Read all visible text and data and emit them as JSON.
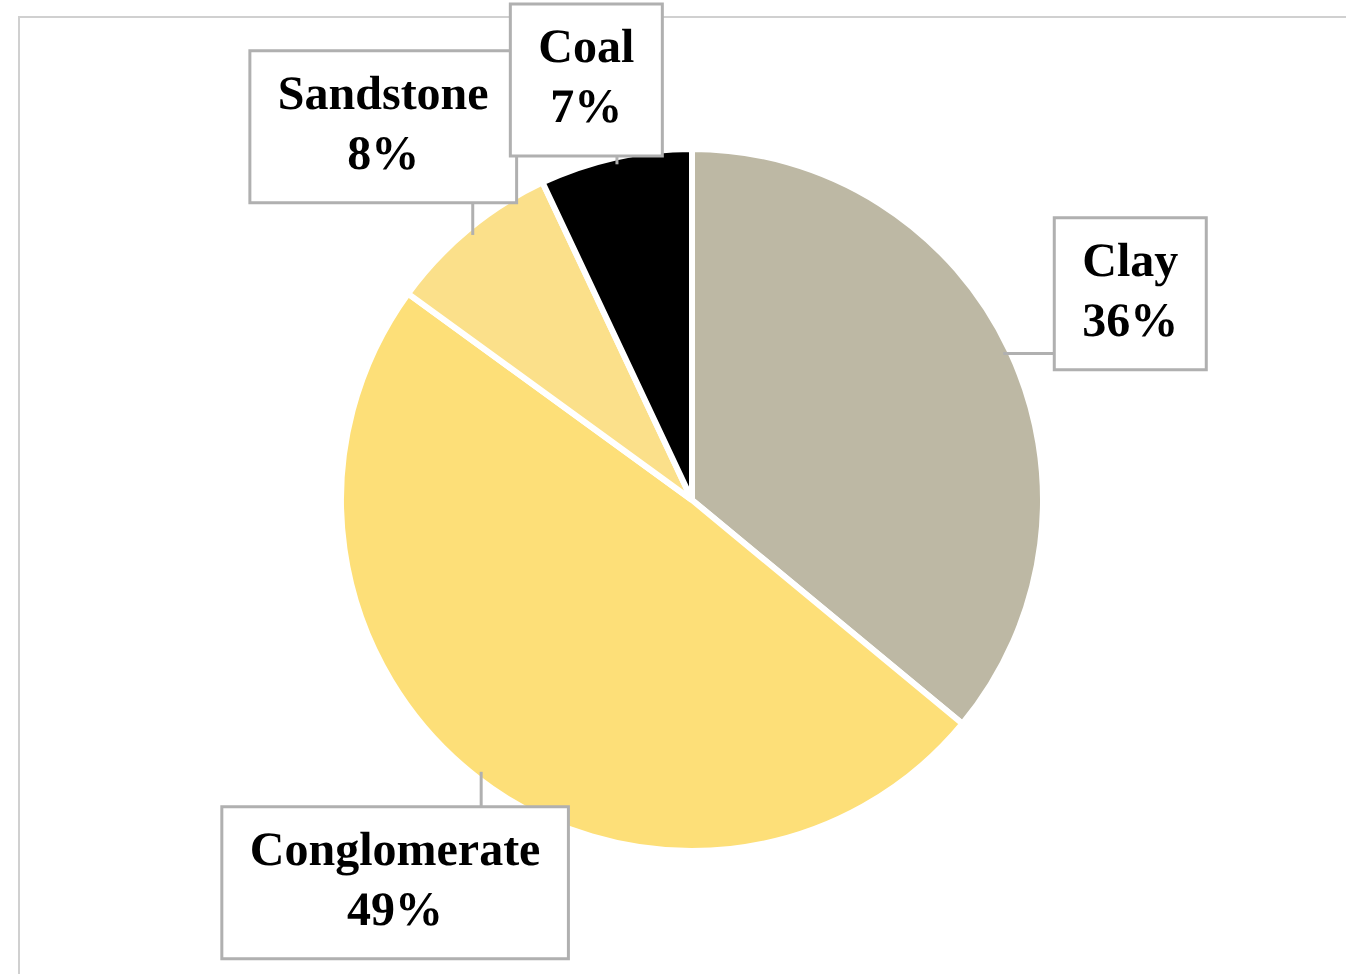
{
  "chart_data": {
    "type": "pie",
    "categories": [
      "Clay",
      "Conglomerate",
      "Sandstone",
      "Coal"
    ],
    "values": [
      36,
      49,
      8,
      7
    ],
    "value_labels": [
      "36%",
      "49%",
      "8%",
      "7%"
    ],
    "colors": [
      "#bdb8a4",
      "#fddf78",
      "#fbe08a",
      "#000000"
    ],
    "legend": false
  }
}
